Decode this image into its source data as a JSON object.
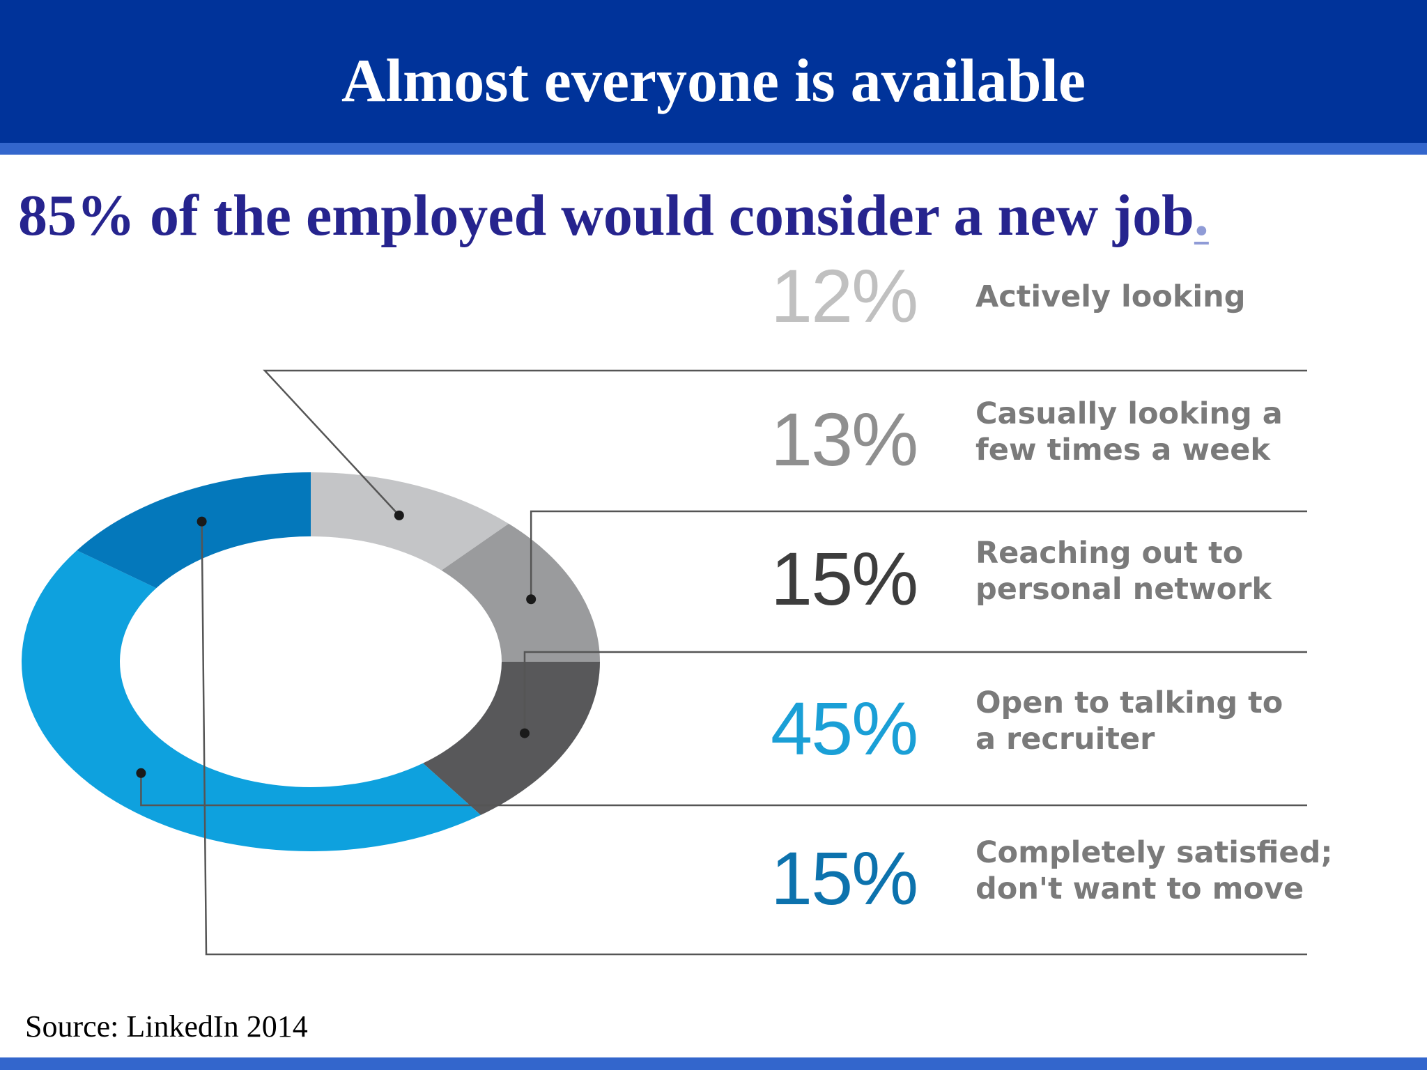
{
  "header": {
    "title": "Almost everyone is available"
  },
  "headline": {
    "text": "85% of the employed would consider a new job",
    "trailing": "."
  },
  "colors": {
    "header_bg": "#00339a",
    "header_rule": "#3366cc",
    "headline": "#26248e",
    "leader_line": "#555555"
  },
  "chart_data": {
    "type": "pie",
    "variant": "donut",
    "slices": [
      {
        "value": 12,
        "display": "12%",
        "label_lines": [
          "Actively looking"
        ],
        "color": "#c4c5c7",
        "text_color": "#c0c0c0"
      },
      {
        "value": 13,
        "display": "13%",
        "label_lines": [
          "Casually looking a",
          "few times a week"
        ],
        "color": "#9a9b9d",
        "text_color": "#8f8f8f"
      },
      {
        "value": 15,
        "display": "15%",
        "label_lines": [
          "Reaching out to",
          "personal network"
        ],
        "color": "#58585a",
        "text_color": "#3d3d3d"
      },
      {
        "value": 45,
        "display": "45%",
        "label_lines": [
          "Open to talking to",
          "a recruiter"
        ],
        "color": "#0ea1de",
        "text_color": "#1a9fd6"
      },
      {
        "value": 15,
        "display": "15%",
        "label_lines": [
          "Completely satisfied;",
          "don't want to move"
        ],
        "color": "#0478bb",
        "text_color": "#0c72ad"
      }
    ]
  },
  "source": {
    "text": "Source: LinkedIn 2014"
  }
}
